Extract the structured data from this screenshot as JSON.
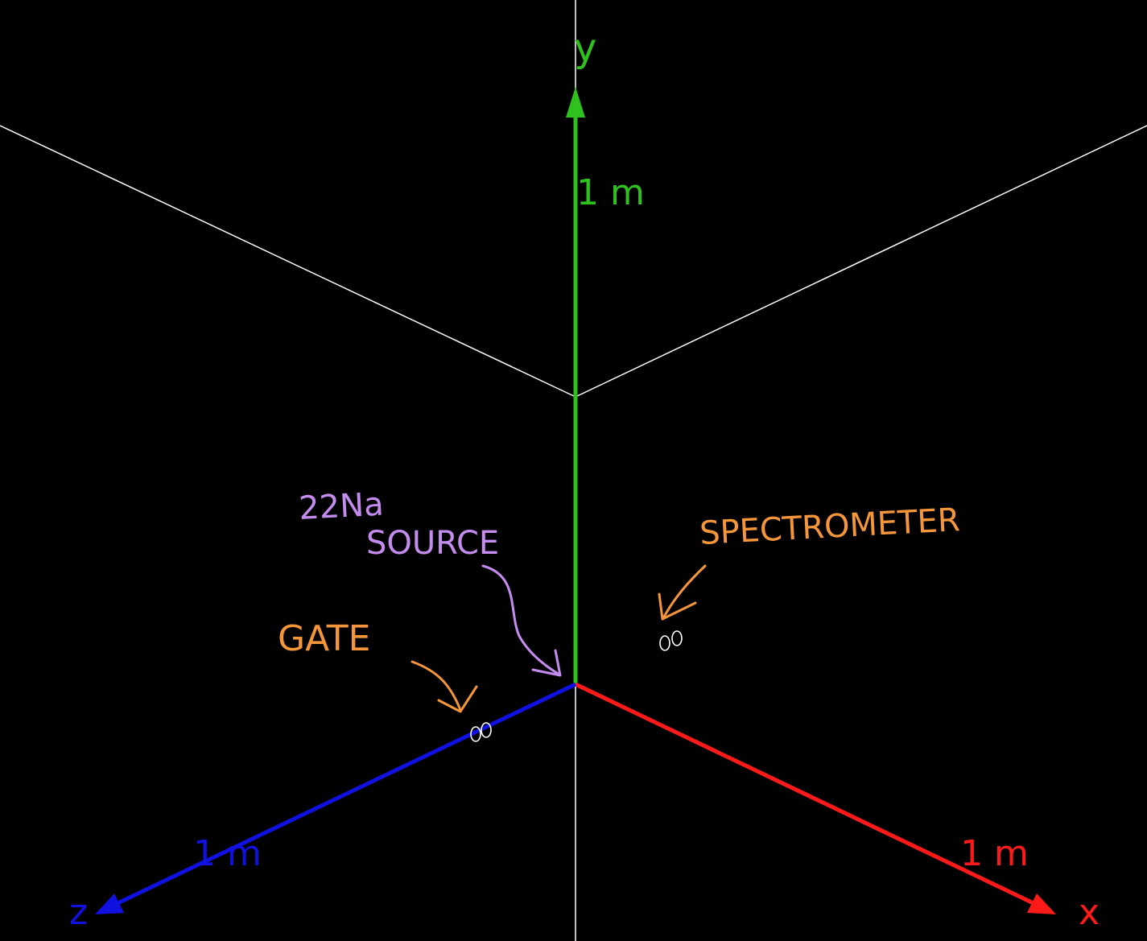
{
  "axes": {
    "x": {
      "label": "x",
      "scale_label": "1 m",
      "color": "#ff1a1a"
    },
    "y": {
      "label": "y",
      "scale_label": "1 m",
      "color": "#2fc21f"
    },
    "z": {
      "label": "z",
      "scale_label": "1 m",
      "color": "#1010e0"
    }
  },
  "grid_color": "#ffffff",
  "annotations": {
    "source_isotope": "22Na",
    "source_word": "SOURCE",
    "gate": "GATE",
    "spectrometer": "SPECTROMETER",
    "source_color": "#c58cf0",
    "label_color": "#f5963a"
  }
}
